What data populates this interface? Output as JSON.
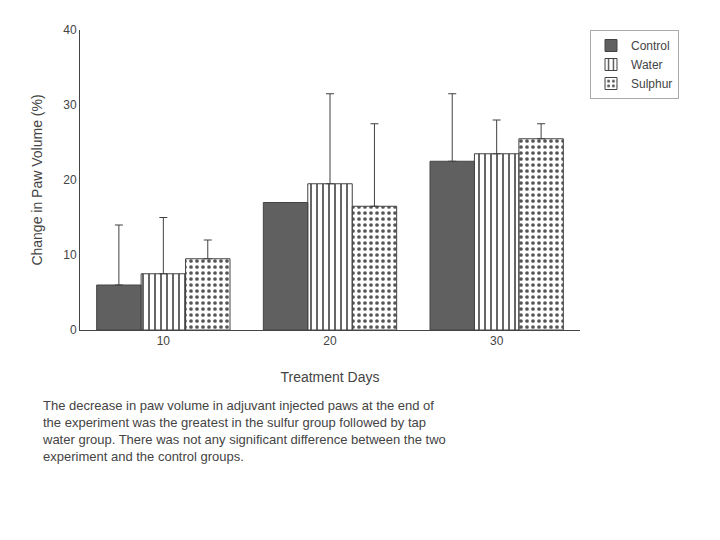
{
  "chart_data": {
    "type": "bar",
    "xlabel": "Treatment Days",
    "ylabel": "Change in Paw Volume (%)",
    "categories": [
      "10",
      "20",
      "30"
    ],
    "series": [
      {
        "name": "Control",
        "color": "#606060",
        "values": [
          6.0,
          17.0,
          22.5
        ],
        "errors_up": [
          8.0,
          0,
          9.0
        ]
      },
      {
        "name": "Water",
        "color": "#ffffff",
        "values": [
          7.5,
          19.5,
          23.5
        ],
        "errors_up": [
          7.5,
          12.0,
          4.5
        ]
      },
      {
        "name": "Sulphur",
        "color": "#b0b0b0",
        "values": [
          9.5,
          16.5,
          25.5
        ],
        "errors_up": [
          2.5,
          11.0,
          2.0
        ]
      }
    ],
    "ylim": [
      0,
      40
    ],
    "yticks": [
      0,
      10,
      20,
      30,
      40
    ],
    "legend": "upper right",
    "grid": false,
    "annotations": [
      "The decrease in paw volume in adjuvant injected paws at the end of\nthe experiment was the greatest in the sulfur group followed by tap\nwater group. There was not any significant difference between the two\nexperiment and the control groups."
    ]
  }
}
